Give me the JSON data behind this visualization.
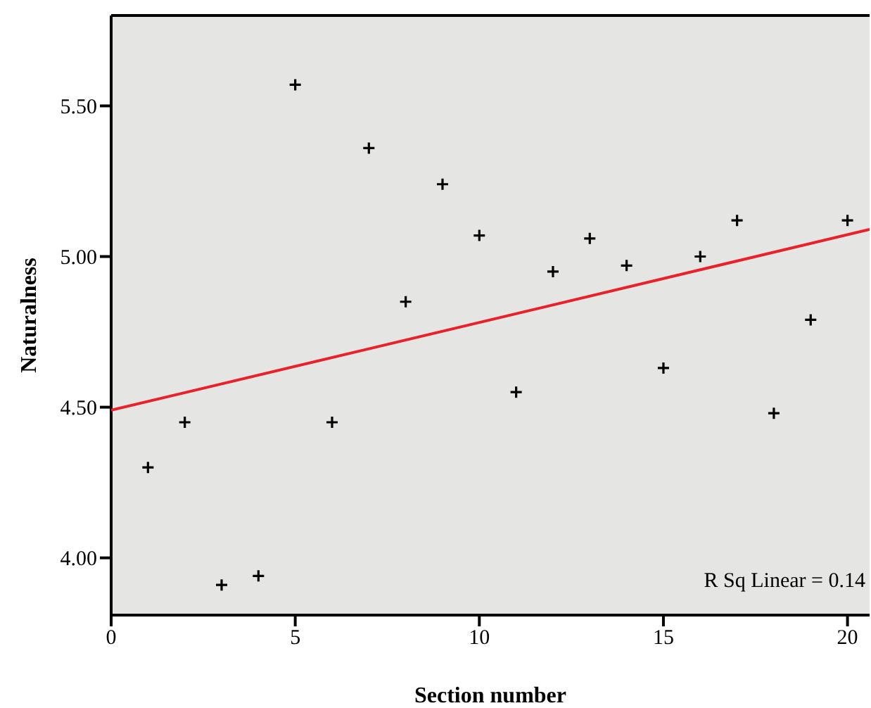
{
  "chart_data": {
    "type": "scatter",
    "xlabel": "Section number",
    "ylabel": "Naturalness",
    "xlim": [
      0,
      20.6
    ],
    "xticks": [
      0,
      5,
      10,
      15,
      20
    ],
    "ylim": [
      3.81,
      5.8
    ],
    "yticks": [
      {
        "value": 4,
        "label": "4.00"
      },
      {
        "value": 4.5,
        "label": "4.50"
      },
      {
        "value": 5,
        "label": "5.00"
      },
      {
        "value": 5.5,
        "label": "5.50"
      }
    ],
    "grid": false,
    "marker": "cross",
    "series": [
      {
        "color": "#000000",
        "x": [
          1,
          2,
          3,
          4,
          5,
          6,
          7,
          8,
          9,
          10,
          11,
          12,
          13,
          14,
          15,
          16,
          17,
          18,
          19,
          20
        ],
        "values": [
          4.3,
          4.45,
          3.91,
          3.94,
          5.57,
          4.45,
          5.36,
          4.85,
          5.24,
          5.07,
          4.55,
          4.95,
          5.06,
          4.97,
          4.63,
          5.0,
          5.12,
          4.48,
          4.79,
          5.12
        ]
      },
      {
        "type": "line",
        "marker": "none",
        "color": "#e8212b",
        "x": [
          0,
          20.6
        ],
        "values": [
          4.49,
          5.09
        ]
      }
    ],
    "annotations": [
      "R Sq Linear = 0.14"
    ]
  }
}
